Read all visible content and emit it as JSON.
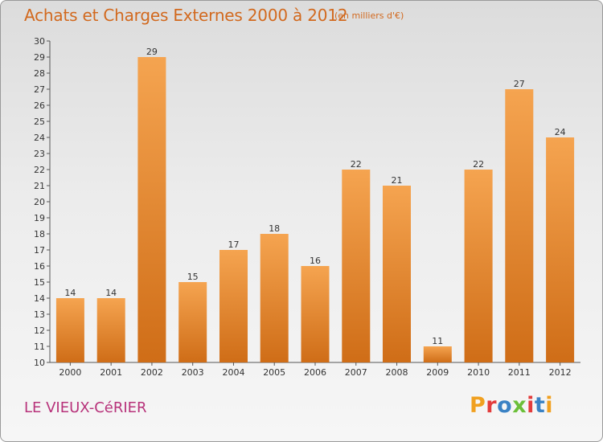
{
  "header": {
    "title": "Achats et Charges Externes 2000 à 2012",
    "subtitle": "(en milliers d'€)"
  },
  "footer": {
    "commune": "LE VIEUX-CéRIER",
    "logo_text": "Proxiti"
  },
  "colors": {
    "title": "#d2691e",
    "commune": "#b7327a",
    "bar_light": "#f5a450",
    "bar_dark": "#cf6d17",
    "logo_letters": [
      "#f0a020",
      "#e23c3c",
      "#3b82c4",
      "#6cbf3a",
      "#e23c3c",
      "#3b82c4",
      "#f0a020"
    ]
  },
  "chart_data": {
    "type": "bar",
    "categories": [
      "2000",
      "2001",
      "2002",
      "2003",
      "2004",
      "2005",
      "2006",
      "2007",
      "2008",
      "2009",
      "2010",
      "2011",
      "2012"
    ],
    "values": [
      14,
      14,
      29,
      15,
      17,
      18,
      16,
      22,
      21,
      11,
      22,
      27,
      24
    ],
    "ylim": [
      10,
      30
    ],
    "y_ticks": [
      10,
      11,
      12,
      13,
      14,
      15,
      16,
      17,
      18,
      19,
      20,
      21,
      22,
      23,
      24,
      25,
      26,
      27,
      28,
      29,
      30
    ],
    "grid": false,
    "data_labels": true
  }
}
